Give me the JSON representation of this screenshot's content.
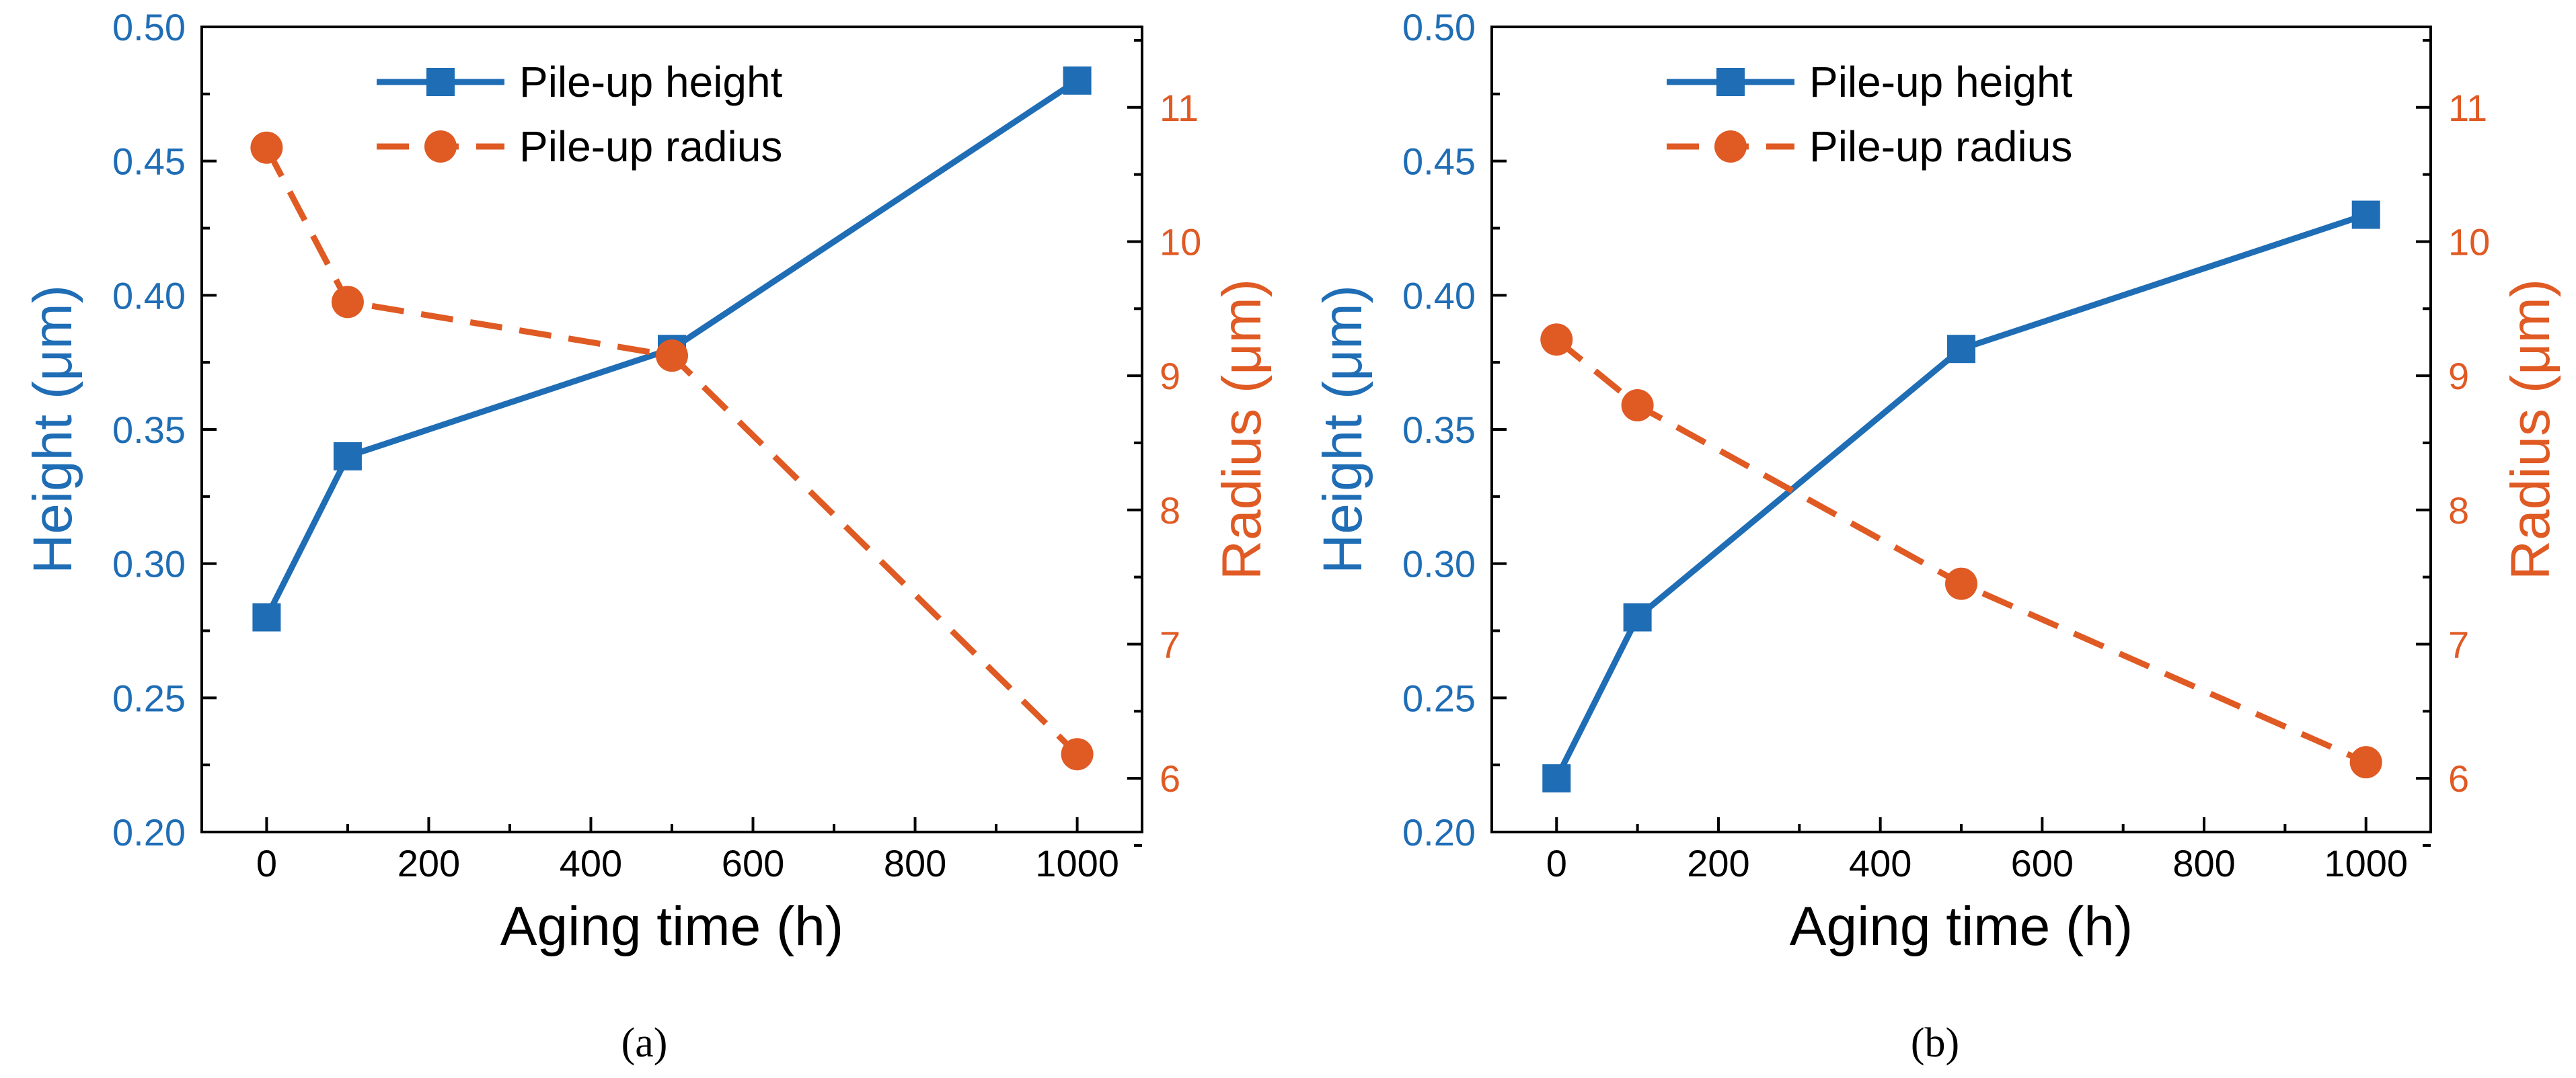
{
  "figure": {
    "panels": [
      "(a)",
      "(b)"
    ]
  },
  "colors": {
    "height": "#1f6db5",
    "radius": "#e05a24",
    "axis": "#000000"
  },
  "chart_data": [
    {
      "type": "line",
      "panel_label": "(a)",
      "title": "",
      "xlabel": "Aging time (h)",
      "ylabel_left": "Height (μm)",
      "ylabel_right": "Radius (μm)",
      "xlim": [
        -80,
        1080
      ],
      "ylim_left": [
        0.2,
        0.5
      ],
      "ylim_right": [
        5.6,
        11.6
      ],
      "xticks": [
        "0",
        "200",
        "400",
        "600",
        "800",
        "1000"
      ],
      "xtick_values": [
        0,
        200,
        400,
        600,
        800,
        1000
      ],
      "yticks_left": [
        "0.20",
        "0.25",
        "0.30",
        "0.35",
        "0.40",
        "0.45",
        "0.50"
      ],
      "ytick_left_values": [
        0.2,
        0.25,
        0.3,
        0.35,
        0.4,
        0.45,
        0.5
      ],
      "yticks_right": [
        "6",
        "7",
        "8",
        "9",
        "10",
        "11"
      ],
      "ytick_right_values": [
        6,
        7,
        8,
        9,
        10,
        11
      ],
      "legend_position": "top-center",
      "grid": false,
      "series": [
        {
          "name": "Pile-up height",
          "axis": "left",
          "marker": "square",
          "style": "solid",
          "x": [
            0,
            100,
            500,
            1000
          ],
          "values": [
            0.28,
            0.34,
            0.38,
            0.48
          ]
        },
        {
          "name": "Pile-up radius",
          "axis": "right",
          "marker": "circle",
          "style": "dashed",
          "x": [
            0,
            100,
            500,
            1000
          ],
          "values": [
            10.7,
            9.55,
            9.15,
            6.18
          ]
        }
      ]
    },
    {
      "type": "line",
      "panel_label": "(b)",
      "title": "",
      "xlabel": "Aging time (h)",
      "ylabel_left": "Height (μm)",
      "ylabel_right": "Radius (μm)",
      "xlim": [
        -80,
        1080
      ],
      "ylim_left": [
        0.2,
        0.5
      ],
      "ylim_right": [
        5.6,
        11.6
      ],
      "xticks": [
        "0",
        "200",
        "400",
        "600",
        "800",
        "1000"
      ],
      "xtick_values": [
        0,
        200,
        400,
        600,
        800,
        1000
      ],
      "yticks_left": [
        "0.20",
        "0.25",
        "0.30",
        "0.35",
        "0.40",
        "0.45",
        "0.50"
      ],
      "ytick_left_values": [
        0.2,
        0.25,
        0.3,
        0.35,
        0.4,
        0.45,
        0.5
      ],
      "yticks_right": [
        "6",
        "7",
        "8",
        "9",
        "10",
        "11"
      ],
      "ytick_right_values": [
        6,
        7,
        8,
        9,
        10,
        11
      ],
      "legend_position": "top-center",
      "grid": false,
      "series": [
        {
          "name": "Pile-up height",
          "axis": "left",
          "marker": "square",
          "style": "solid",
          "x": [
            0,
            100,
            500,
            1000
          ],
          "values": [
            0.22,
            0.28,
            0.38,
            0.43
          ]
        },
        {
          "name": "Pile-up radius",
          "axis": "right",
          "marker": "circle",
          "style": "dashed",
          "x": [
            0,
            100,
            500,
            1000
          ],
          "values": [
            9.27,
            8.78,
            7.45,
            6.12
          ]
        }
      ]
    }
  ]
}
